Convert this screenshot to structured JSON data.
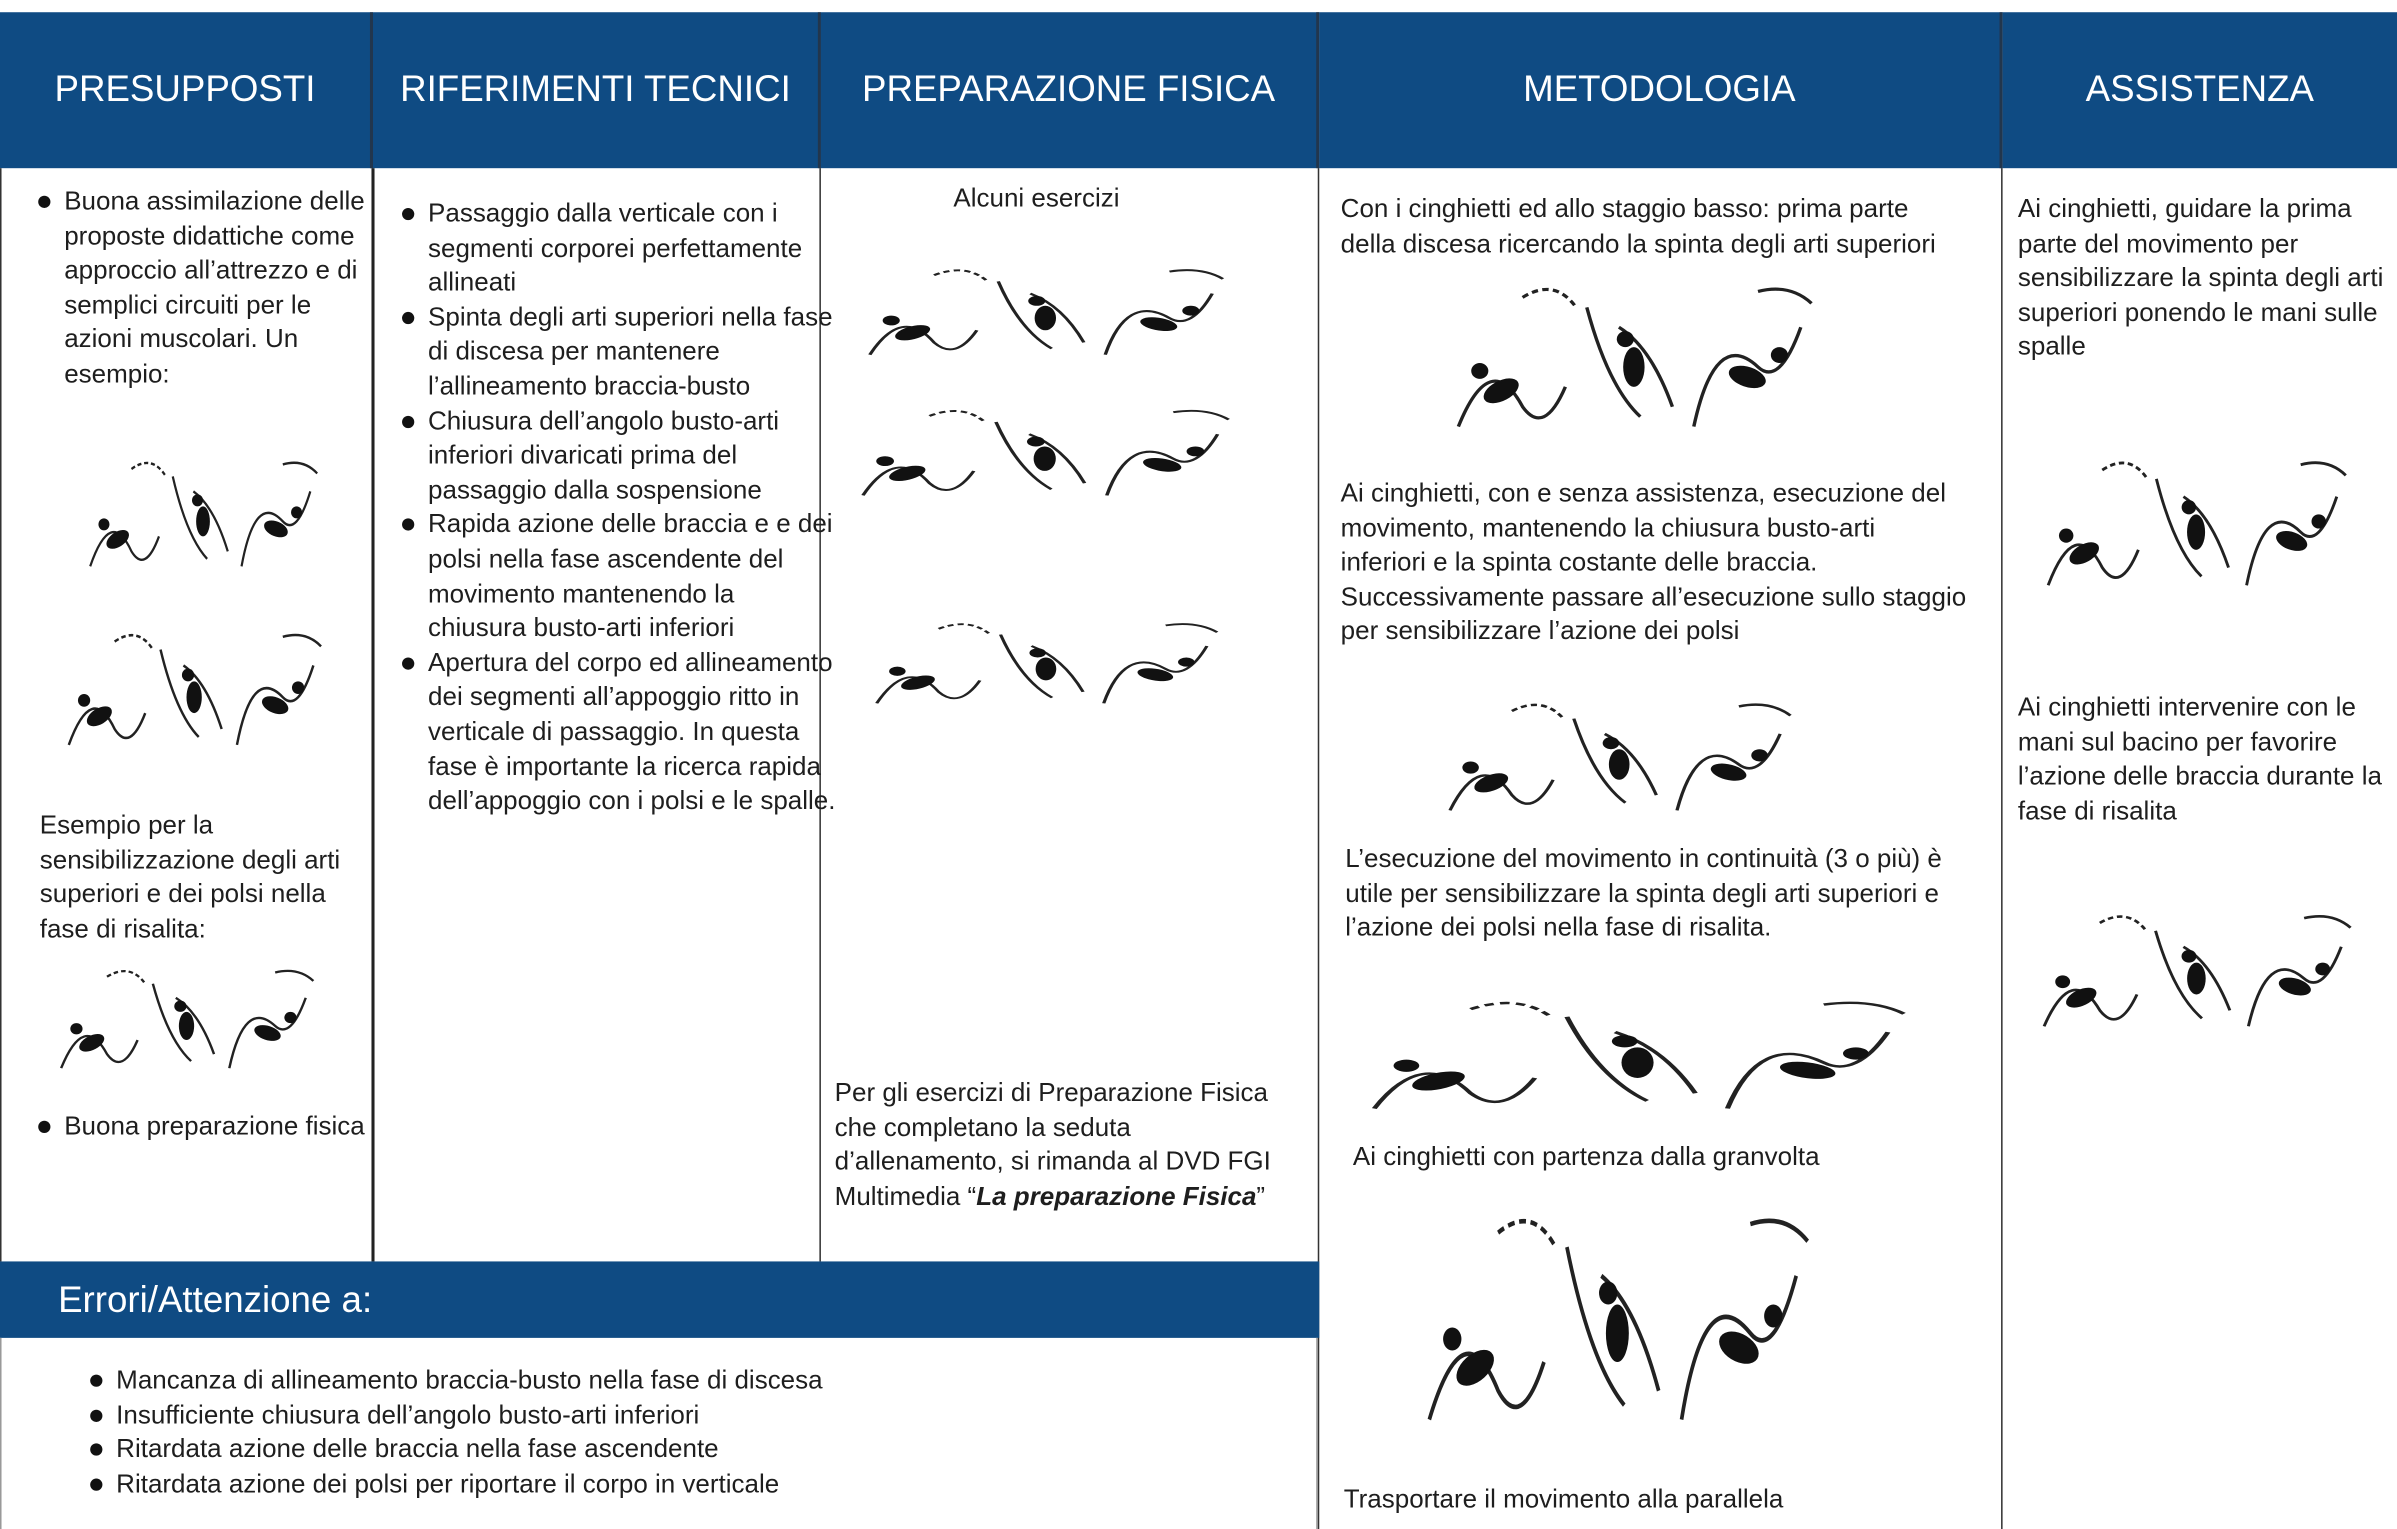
{
  "header": {
    "columns": [
      "PRESUPPOSTI",
      "RIFERIMENTI TECNICI",
      "PREPARAZIONE FISICA",
      "METODOLOGIA",
      "ASSISTENZA"
    ]
  },
  "presupposti": {
    "bullet_1": "Buona assimilazione delle proposte didattiche come approccio all’attrezzo e di semplici circuiti per le azioni muscolari. Un esempio:",
    "paragraph": "Esempio per la sensibilizzazione degli arti superiori e dei polsi nella fase di risalita:",
    "bullet_2": "Buona preparazione fisica"
  },
  "riferimenti": {
    "items": [
      "Passaggio dalla verticale con i segmenti corporei perfettamente allineati",
      "Spinta degli arti superiori nella fase di discesa per mantenere l’allineamento braccia-busto",
      "Chiusura dell’angolo busto-arti inferiori divaricati prima del passaggio dalla sospensione",
      "Rapida azione delle braccia e e dei polsi nella fase ascendente del movimento mantenendo la chiusura busto-arti inferiori",
      "Apertura del corpo ed allineamento dei segmenti all’appoggio ritto in verticale di passaggio. In questa fase è importante la ricerca rapida dell’appoggio con i polsi e le spalle."
    ]
  },
  "preparazione": {
    "caption": "Alcuni esercizi",
    "note_before": "Per gli esercizi di Preparazione Fisica che completano la seduta d’allenamento, si rimanda al DVD FGI Multimedia “",
    "note_emphasis": "La preparazione Fisica",
    "note_after": "”"
  },
  "metodologia": {
    "paragraphs": [
      "Con i cinghietti ed allo staggio basso: prima parte della discesa ricercando la spinta degli arti superiori",
      "Ai cinghietti, con e senza assistenza, esecuzione del movimento, mantenendo la chiusura busto-arti inferiori e la spinta costante delle braccia. Successivamente passare all’esecuzione sullo staggio per sensibilizzare l’azione dei polsi",
      "L’esecuzione del movimento in continuità (3 o più) è utile per sensibilizzare la spinta degli arti superiori e l’azione dei polsi nella fase di risalita.",
      "Ai cinghietti con partenza dalla granvolta",
      "Trasportare il movimento alla parallela"
    ]
  },
  "assistenza": {
    "paragraphs": [
      "Ai cinghietti, guidare la prima parte del movimento per sensibilizzare la spinta degli arti superiori ponendo le mani sulle spalle",
      "Ai cinghietti intervenire con le mani sul bacino per favorire l’azione delle braccia durante la fase di risalita"
    ]
  },
  "errori": {
    "title": "Errori/Attenzione a:",
    "items": [
      "Mancanza di allineamento braccia-busto nella fase di discesa",
      "Insufficiente chiusura dell’angolo busto-arti inferiori",
      "Ritardata azione delle braccia nella fase ascendente",
      "Ritardata azione dei polsi per riportare il corpo in verticale"
    ]
  }
}
